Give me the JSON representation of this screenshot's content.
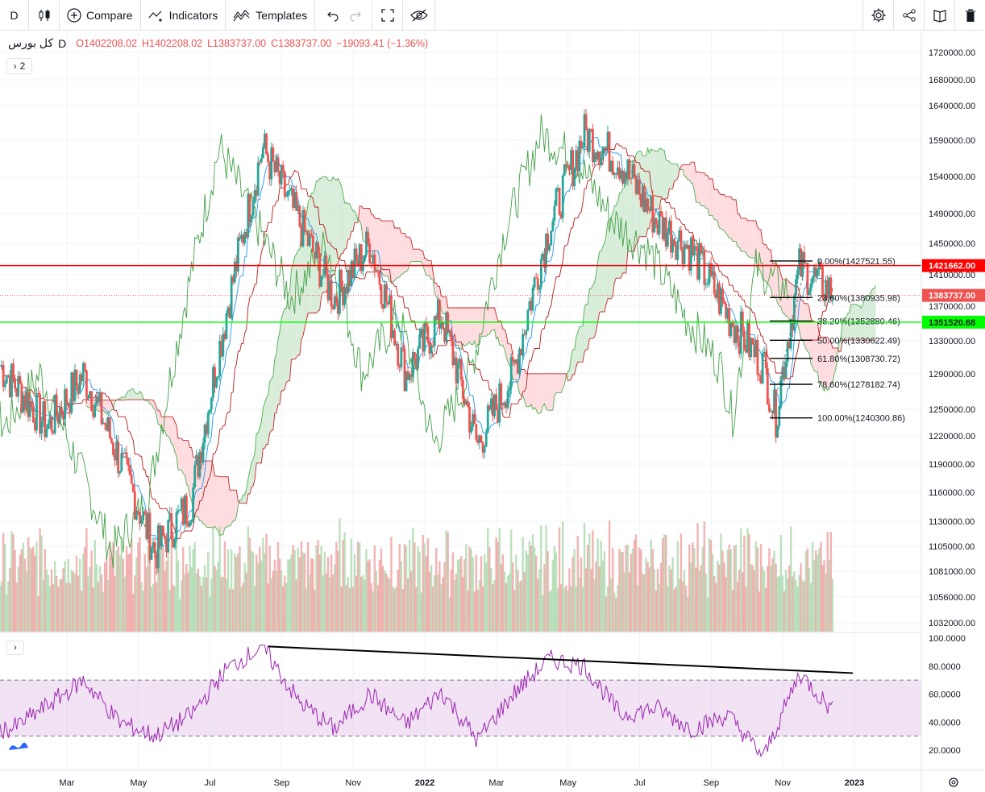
{
  "toolbar": {
    "interval": "D",
    "compare": "Compare",
    "indicators": "Indicators",
    "templates": "Templates"
  },
  "legend": {
    "symbol": "کل بورس",
    "interval": "D",
    "open": "O1402208.02",
    "high": "H1402208.02",
    "low": "L1383737.00",
    "close": "C1383737.00",
    "change": "−19093.41 (−1.36%)",
    "collapsed_count": "2"
  },
  "colors": {
    "up": "#26a69a",
    "down": "#ef5350",
    "red_line": "#ff0000",
    "green_line": "#00ff00",
    "rsi": "#9c27b0",
    "cloud_bull": "#c8e6c9",
    "cloud_bear": "#ffcdd2"
  },
  "chart_data": [
    {
      "type": "candlestick",
      "title": "",
      "price_axis_ticks": [
        1720000,
        1680000,
        1640000,
        1590000,
        1540000,
        1490000,
        1450000,
        1410000,
        1370000,
        1330000,
        1290000,
        1250000,
        1220000,
        1190000,
        1160000,
        1130000,
        1105000,
        1081000,
        1056000,
        1032000
      ],
      "price_axis_labels": [
        "1720000.00",
        "1680000.00",
        "1640000.00",
        "1590000.00",
        "1540000.00",
        "1490000.00",
        "1450000.00",
        "1410000.00",
        "1370000.00",
        "1330000.00",
        "1290000.00",
        "1250000.00",
        "1220000.00",
        "1190000.00",
        "1160000.00",
        "1130000.00",
        "1105000.00",
        "1081000.00",
        "1056000.00",
        "1032000.00"
      ],
      "time_axis_labels": [
        "Mar",
        "May",
        "Jul",
        "Sep",
        "Nov",
        "2022",
        "Mar",
        "May",
        "Jul",
        "Sep",
        "Nov",
        "2023"
      ],
      "key_points": [
        {
          "date": "2021-02",
          "close": 1230000
        },
        {
          "date": "2021-03",
          "close": 1290000
        },
        {
          "date": "2021-05",
          "close": 1100000
        },
        {
          "date": "2021-06",
          "close": 1150000
        },
        {
          "date": "2021-08",
          "close": 1580000
        },
        {
          "date": "2021-09",
          "close": 1480000
        },
        {
          "date": "2021-10",
          "close": 1380000
        },
        {
          "date": "2021-11",
          "close": 1450000
        },
        {
          "date": "2021-12",
          "close": 1290000
        },
        {
          "date": "2022-01",
          "close": 1360000
        },
        {
          "date": "2022-02",
          "close": 1210000
        },
        {
          "date": "2022-03",
          "close": 1290000
        },
        {
          "date": "2022-04",
          "close": 1470000
        },
        {
          "date": "2022-05",
          "close": 1600000
        },
        {
          "date": "2022-06",
          "close": 1560000
        },
        {
          "date": "2022-07",
          "close": 1480000
        },
        {
          "date": "2022-08",
          "close": 1440000
        },
        {
          "date": "2022-09",
          "close": 1360000
        },
        {
          "date": "2022-10",
          "close": 1300000
        },
        {
          "date": "2022-10-25",
          "close": 1240300
        },
        {
          "date": "2022-11",
          "close": 1420000
        },
        {
          "date": "2022-12",
          "close": 1383737
        }
      ],
      "horizontal_lines": [
        {
          "price": 1421662,
          "label": "1421662.00",
          "color": "#ff0000"
        },
        {
          "price": 1351520.68,
          "label": "1351520.68",
          "color": "#00ff00"
        }
      ],
      "last_price": {
        "price": 1383737,
        "label": "1383737.00"
      },
      "fibonacci": [
        {
          "level": "0.00%",
          "price": 1427521.55,
          "label": "0.00%(1427521.55)"
        },
        {
          "level": "23.60%",
          "price": 1380935.98,
          "label": "23.60%(1380935.98)"
        },
        {
          "level": "38.20%",
          "price": 1352880.46,
          "label": "38.20%(1352880.46)"
        },
        {
          "level": "50.00%",
          "price": 1330622.49,
          "label": "50.00%(1330622.49)"
        },
        {
          "level": "61.80%",
          "price": 1308730.72,
          "label": "61.80%(1308730.72)"
        },
        {
          "level": "78.60%",
          "price": 1278182.74,
          "label": "78.60%(1278182.74)"
        },
        {
          "level": "100.00%",
          "price": 1240300.86,
          "label": "100.00%(1240300.86)"
        }
      ],
      "indicators": [
        "Ichimoku Cloud",
        "Volume"
      ]
    },
    {
      "type": "line",
      "title": "",
      "indicator": "RSI",
      "ylim": [
        10,
        100
      ],
      "y_axis_labels": [
        "100.0000",
        "80.0000",
        "60.0000",
        "40.0000",
        "20.0000"
      ],
      "bands": [
        30,
        70
      ],
      "key_points": [
        {
          "date": "2021-01",
          "value": 35
        },
        {
          "date": "2021-02",
          "value": 52
        },
        {
          "date": "2021-03",
          "value": 70
        },
        {
          "date": "2021-04",
          "value": 40
        },
        {
          "date": "2021-05",
          "value": 30
        },
        {
          "date": "2021-06",
          "value": 45
        },
        {
          "date": "2021-07",
          "value": 78
        },
        {
          "date": "2021-08",
          "value": 94
        },
        {
          "date": "2021-09",
          "value": 55
        },
        {
          "date": "2021-10",
          "value": 35
        },
        {
          "date": "2021-11",
          "value": 60
        },
        {
          "date": "2021-12",
          "value": 38
        },
        {
          "date": "2022-01",
          "value": 62
        },
        {
          "date": "2022-02",
          "value": 27
        },
        {
          "date": "2022-03",
          "value": 60
        },
        {
          "date": "2022-04",
          "value": 85
        },
        {
          "date": "2022-05",
          "value": 80
        },
        {
          "date": "2022-06",
          "value": 45
        },
        {
          "date": "2022-07",
          "value": 50
        },
        {
          "date": "2022-08",
          "value": 35
        },
        {
          "date": "2022-09",
          "value": 45
        },
        {
          "date": "2022-10",
          "value": 15
        },
        {
          "date": "2022-11",
          "value": 75
        },
        {
          "date": "2022-12",
          "value": 46
        }
      ],
      "trendline": [
        {
          "date": "2021-08",
          "value": 94
        },
        {
          "date": "2022-12-31",
          "value": 75
        }
      ]
    }
  ]
}
